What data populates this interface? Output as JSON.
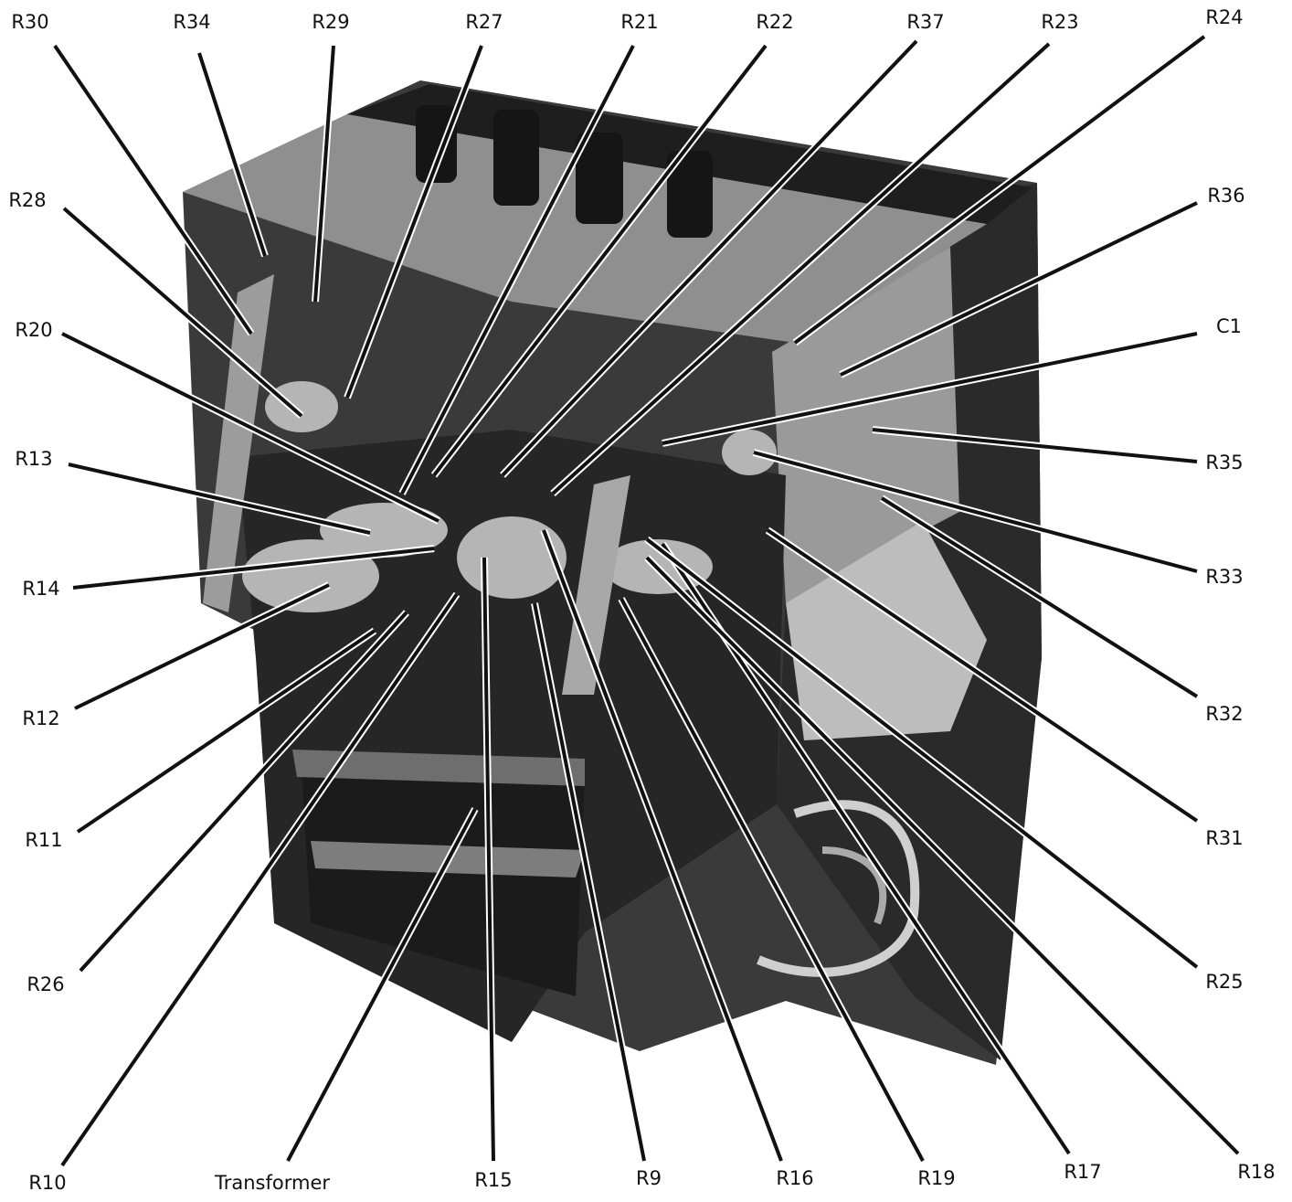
{
  "labels": [
    "R30",
    "R34",
    "R29",
    "R27",
    "R21",
    "R22",
    "R37",
    "R23",
    "R24",
    "R28",
    "R20",
    "R13",
    "R14",
    "R12",
    "R11",
    "R26",
    "R10",
    "Transformer",
    "R15",
    "R9",
    "R16",
    "R19",
    "R17",
    "R18",
    "R36",
    "C1",
    "R35",
    "R33",
    "R32",
    "R31",
    "R25"
  ]
}
